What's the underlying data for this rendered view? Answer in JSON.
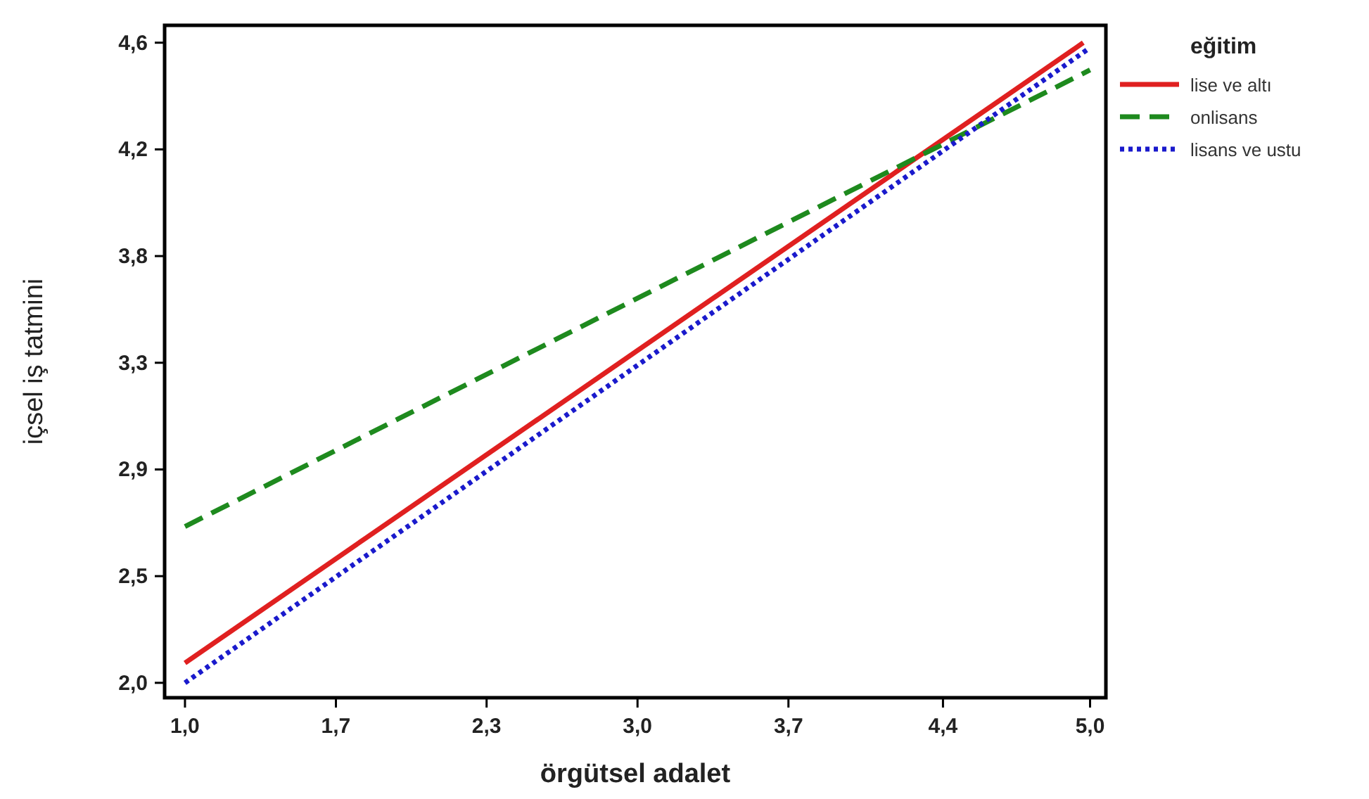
{
  "chart_data": {
    "type": "line",
    "xlabel": "örgütsel adalet",
    "ylabel": "içsel iş tatmini",
    "legend_title": "eğitim",
    "legend": "right",
    "xlim": [
      0.91,
      5.07
    ],
    "ylim": [
      1.98,
      4.69
    ],
    "xticks": [
      {
        "value": 1.0,
        "label": "1,0"
      },
      {
        "value": 1.667,
        "label": "1,7"
      },
      {
        "value": 2.333,
        "label": "2,3"
      },
      {
        "value": 3.0,
        "label": "3,0"
      },
      {
        "value": 3.667,
        "label": "3,7"
      },
      {
        "value": 4.35,
        "label": "4,4"
      },
      {
        "value": 5.0,
        "label": "5,0"
      }
    ],
    "yticks": [
      {
        "value": 2.04,
        "label": "2,0"
      },
      {
        "value": 2.47,
        "label": "2,5"
      },
      {
        "value": 2.9,
        "label": "2,9"
      },
      {
        "value": 3.33,
        "label": "3,3"
      },
      {
        "value": 3.76,
        "label": "3,8"
      },
      {
        "value": 4.19,
        "label": "4,2"
      },
      {
        "value": 4.62,
        "label": "4,6"
      }
    ],
    "series": [
      {
        "name": "lise ve altı",
        "color": "#e02020",
        "line_style": "solid",
        "x": [
          1.0,
          4.97
        ],
        "values": [
          2.12,
          4.62
        ]
      },
      {
        "name": "onlisans",
        "color": "#1e8a1e",
        "line_style": "dashed",
        "x": [
          1.0,
          5.0
        ],
        "values": [
          2.67,
          4.51
        ]
      },
      {
        "name": "lisans ve ustu",
        "color": "#1a1acc",
        "line_style": "dotted",
        "x": [
          1.0,
          5.0
        ],
        "values": [
          2.04,
          4.6
        ]
      }
    ]
  }
}
